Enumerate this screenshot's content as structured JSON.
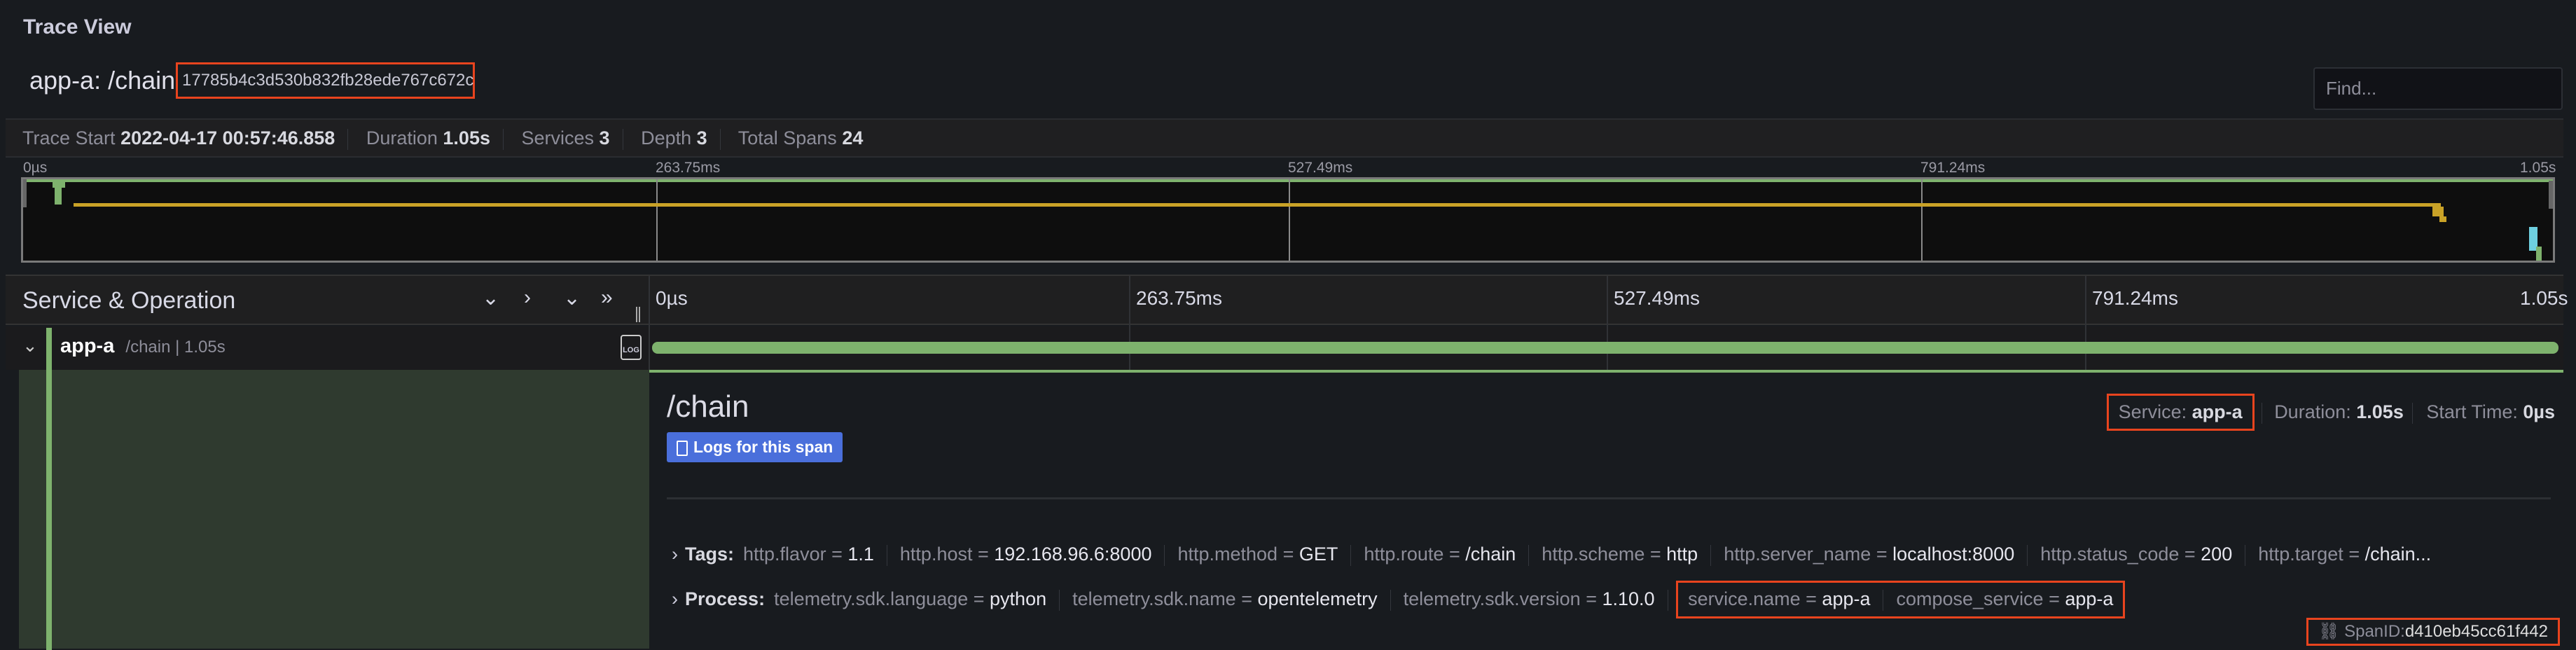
{
  "panel_title": "Trace View",
  "trace": {
    "title": "app-a: /chain",
    "id": "17785b4c3d530b832fb28ede767c672c"
  },
  "find": {
    "placeholder": "Find..."
  },
  "stats": [
    {
      "label": "Trace Start",
      "value": "2022-04-17 00:57:46.858"
    },
    {
      "label": "Duration",
      "value": "1.05s"
    },
    {
      "label": "Services",
      "value": "3"
    },
    {
      "label": "Depth",
      "value": "3"
    },
    {
      "label": "Total Spans",
      "value": "24"
    }
  ],
  "minimap": {
    "ticks": [
      "0µs",
      "263.75ms",
      "527.49ms",
      "791.24ms",
      "1.05s"
    ]
  },
  "header": {
    "title": "Service & Operation",
    "ticks": [
      "0µs",
      "263.75ms",
      "527.49ms",
      "791.24ms",
      "1.05s"
    ],
    "icons": [
      "chevron-down-icon",
      "chevron-right-icon",
      "double-chevron-down-icon",
      "double-chevron-right-icon"
    ]
  },
  "colors": {
    "app-a": "#7eb26d",
    "service-2": "#d6a72a",
    "service-3": "#6ed0e0",
    "highlight": "#e8441e",
    "button": "#4a6fdb"
  },
  "span_row": {
    "service": "app-a",
    "operation": "/chain | 1.05s",
    "log_icon": "LOG",
    "progress_percent": 100
  },
  "detail": {
    "title": "/chain",
    "logs_button": "Logs for this span",
    "service_label": "Service:",
    "service": "app-a",
    "duration_label": "Duration:",
    "duration": "1.05s",
    "start_label": "Start Time:",
    "start": "0µs",
    "tags_label": "Tags:",
    "tags": [
      {
        "k": "http.flavor",
        "v": "1.1"
      },
      {
        "k": "http.host",
        "v": "192.168.96.6:8000"
      },
      {
        "k": "http.method",
        "v": "GET"
      },
      {
        "k": "http.route",
        "v": "/chain"
      },
      {
        "k": "http.scheme",
        "v": "http"
      },
      {
        "k": "http.server_name",
        "v": "localhost:8000"
      },
      {
        "k": "http.status_code",
        "v": "200"
      },
      {
        "k": "http.target",
        "v": "/chain..."
      }
    ],
    "process_label": "Process:",
    "process": [
      {
        "k": "telemetry.sdk.language",
        "v": "python"
      },
      {
        "k": "telemetry.sdk.name",
        "v": "opentelemetry"
      },
      {
        "k": "telemetry.sdk.version",
        "v": "1.10.0"
      }
    ],
    "process_highlight": [
      {
        "k": "service.name",
        "v": "app-a"
      },
      {
        "k": "compose_service",
        "v": "app-a"
      }
    ],
    "span_id_label": "SpanID:",
    "span_id": "d410eb45cc61f442"
  }
}
